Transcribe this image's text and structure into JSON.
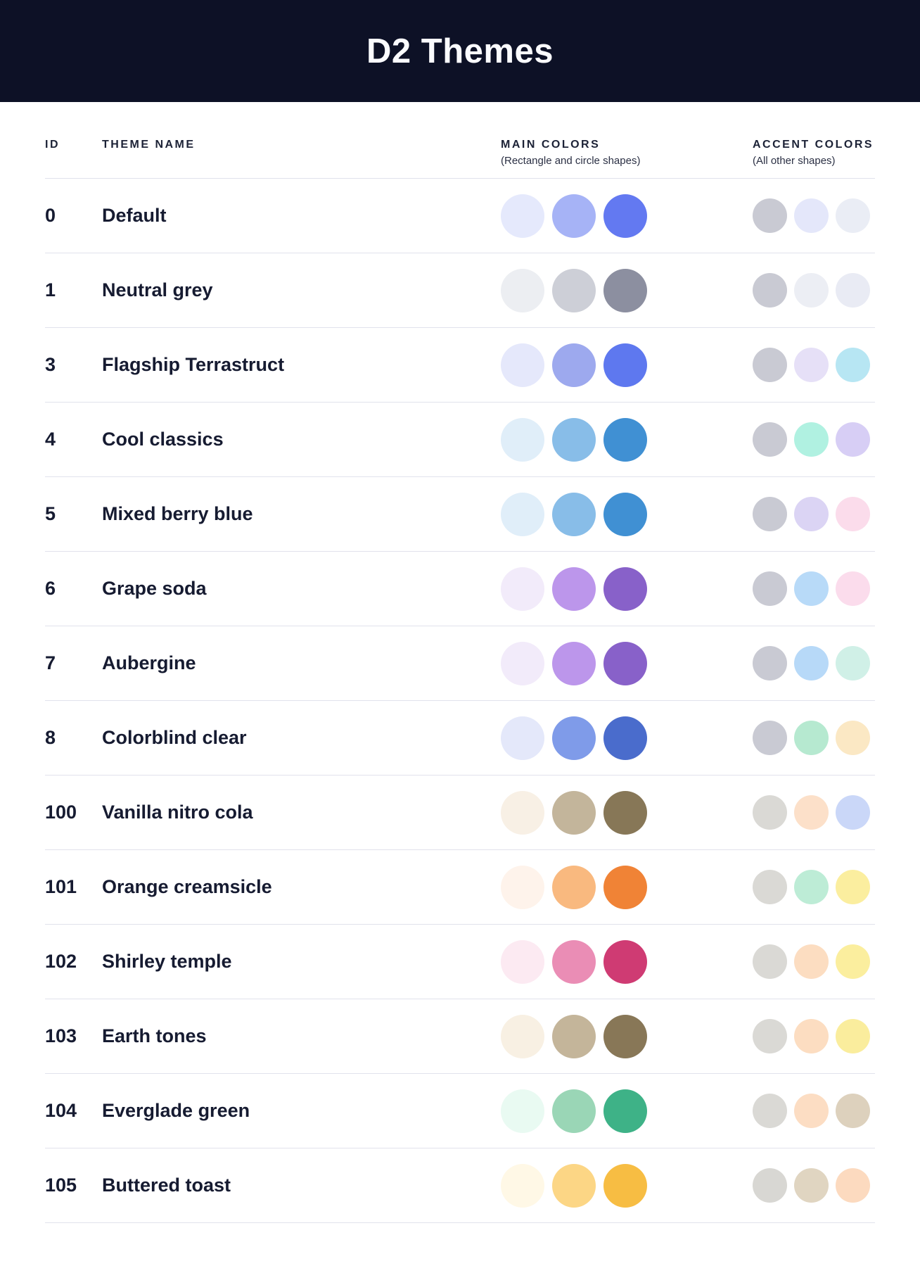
{
  "header": {
    "title": "D2 Themes"
  },
  "table": {
    "columns": {
      "id": "ID",
      "name": "THEME NAME",
      "main": "MAIN COLORS",
      "main_sub": "(Rectangle and circle shapes)",
      "accent": "ACCENT COLORS",
      "accent_sub": "(All other shapes)"
    },
    "rows": [
      {
        "id": "0",
        "name": "Default",
        "main": [
          "#E5E9FC",
          "#A6B3F6",
          "#6379F1"
        ],
        "accent": [
          "#C9CAD3",
          "#E4E7FA",
          "#EAEDF5"
        ]
      },
      {
        "id": "1",
        "name": "Neutral grey",
        "main": [
          "#ECEEF2",
          "#CDCFD7",
          "#8C8FA0"
        ],
        "accent": [
          "#C9CAD3",
          "#ECEEF4",
          "#E9EBF4"
        ]
      },
      {
        "id": "3",
        "name": "Flagship Terrastruct",
        "main": [
          "#E5E8FB",
          "#9DA9EE",
          "#5E78EF"
        ],
        "accent": [
          "#C9CAD3",
          "#E6E0F7",
          "#B7E6F3"
        ]
      },
      {
        "id": "4",
        "name": "Cool classics",
        "main": [
          "#E0EEF9",
          "#88BDE8",
          "#4090D3"
        ],
        "accent": [
          "#C9CAD3",
          "#B0F1E1",
          "#D7CEF5"
        ]
      },
      {
        "id": "5",
        "name": "Mixed berry blue",
        "main": [
          "#E0EEF9",
          "#88BDE8",
          "#4090D3"
        ],
        "accent": [
          "#C9CAD3",
          "#DBD4F4",
          "#FBDCEB"
        ]
      },
      {
        "id": "6",
        "name": "Grape soda",
        "main": [
          "#F2EBFA",
          "#BC96EB",
          "#8861C9"
        ],
        "accent": [
          "#C9CAD3",
          "#B8DAF8",
          "#FBDCEC"
        ]
      },
      {
        "id": "7",
        "name": "Aubergine",
        "main": [
          "#F2EBFA",
          "#BC96EB",
          "#8861C9"
        ],
        "accent": [
          "#C9CAD3",
          "#B7D9F8",
          "#D0F0E7"
        ]
      },
      {
        "id": "8",
        "name": "Colorblind clear",
        "main": [
          "#E4E8FA",
          "#7F9BE9",
          "#4A6CCC"
        ],
        "accent": [
          "#C9CAD3",
          "#B6E9D0",
          "#FBE8C4"
        ]
      },
      {
        "id": "100",
        "name": "Vanilla nitro cola",
        "main": [
          "#F8F0E5",
          "#C3B59B",
          "#877757"
        ],
        "accent": [
          "#DAD9D5",
          "#FCE0C9",
          "#CAD7F8"
        ]
      },
      {
        "id": "101",
        "name": "Orange creamsicle",
        "main": [
          "#FEF3EB",
          "#F9B97F",
          "#F08336"
        ],
        "accent": [
          "#DAD9D5",
          "#BDECD6",
          "#FBEE9F"
        ]
      },
      {
        "id": "102",
        "name": "Shirley temple",
        "main": [
          "#FCEAF2",
          "#EA8DB5",
          "#CF3B73"
        ],
        "accent": [
          "#DAD9D5",
          "#FCDDC1",
          "#FBEE9E"
        ]
      },
      {
        "id": "103",
        "name": "Earth tones",
        "main": [
          "#F8F0E3",
          "#C4B59A",
          "#887757"
        ],
        "accent": [
          "#DAD9D5",
          "#FCDDC1",
          "#FAED9D"
        ]
      },
      {
        "id": "104",
        "name": "Everglade green",
        "main": [
          "#E9FAF2",
          "#9AD6B6",
          "#3EB287"
        ],
        "accent": [
          "#DAD9D5",
          "#FCDDC3",
          "#DDD1BD"
        ]
      },
      {
        "id": "105",
        "name": "Buttered toast",
        "main": [
          "#FFF8E6",
          "#FCD685",
          "#F7BD43"
        ],
        "accent": [
          "#D8D7D3",
          "#E0D5C1",
          "#FCDABF"
        ]
      }
    ]
  },
  "colors": {
    "band_background": "#0D1126",
    "title_text": "#FAFBFE",
    "body_text": "#161B31",
    "divider": "#E1E2EC"
  }
}
